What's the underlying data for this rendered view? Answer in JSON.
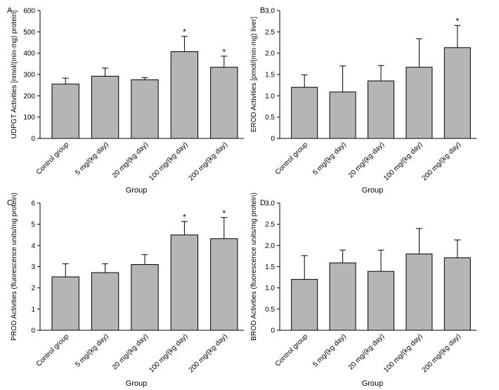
{
  "chart_data": [
    {
      "panel": "A",
      "type": "bar",
      "title": "",
      "xlabel": "Group",
      "ylabel": "UDPGT Activities [nmol/(min·mg) protein]",
      "categories": [
        "Control group",
        "5 mg/(kg·day)",
        "20 mg/(kg·day)",
        "100 mg/(kg·day)",
        "200  mg/(kg·day)"
      ],
      "values": [
        255,
        292,
        275,
        407,
        334
      ],
      "errors": [
        28,
        38,
        10,
        72,
        52
      ],
      "significant": [
        false,
        false,
        false,
        true,
        true
      ],
      "sig_mark": "*",
      "ylim": [
        0,
        600
      ],
      "yticks": [
        0,
        100,
        200,
        300,
        400,
        500,
        600
      ],
      "ytick_labels": [
        "0",
        "100",
        "200",
        "300",
        "400",
        "500",
        "600"
      ]
    },
    {
      "panel": "B",
      "type": "bar",
      "title": "",
      "xlabel": "Group",
      "ylabel": "EROD Activities [pmol/(min·mg) liver]",
      "categories": [
        "Control group",
        "5 mg/(kg·day)",
        "20 mg/(kg·day)",
        "100 mg/(kg·day)",
        "200  mg/(kg·day)"
      ],
      "values": [
        1.2,
        1.09,
        1.35,
        1.67,
        2.13
      ],
      "errors": [
        0.29,
        0.61,
        0.36,
        0.67,
        0.52
      ],
      "significant": [
        false,
        false,
        false,
        false,
        true
      ],
      "sig_mark": "*",
      "ylim": [
        0,
        3.0
      ],
      "yticks": [
        0,
        0.5,
        1.0,
        1.5,
        2.0,
        2.5,
        3.0
      ],
      "ytick_labels": [
        "0",
        "0.5",
        "1.0",
        "1.5",
        "2.0",
        "2.5",
        "3.0"
      ]
    },
    {
      "panel": "C",
      "type": "bar",
      "title": "",
      "xlabel": "Group",
      "ylabel": "PROD Activities  (fluorescence units/mg protein)",
      "categories": [
        "Control group",
        "5 mg/(kg·day)",
        "20 mg/(kg·day)",
        "100 mg/(kg·day)",
        "200  mg/(kg·day)"
      ],
      "values": [
        2.52,
        2.72,
        3.1,
        4.5,
        4.32
      ],
      "errors": [
        0.62,
        0.42,
        0.47,
        0.63,
        1.0
      ],
      "significant": [
        false,
        false,
        false,
        true,
        true
      ],
      "sig_mark": "*",
      "ylim": [
        0,
        6
      ],
      "yticks": [
        0,
        1,
        2,
        3,
        4,
        5,
        6
      ],
      "ytick_labels": [
        "0",
        "1",
        "2",
        "3",
        "4",
        "5",
        "6"
      ]
    },
    {
      "panel": "D",
      "type": "bar",
      "title": "",
      "xlabel": "Group",
      "ylabel": "BROD Activities (fluorescence units/mg protein)",
      "categories": [
        "Control group",
        "5 mg/(kg·day)",
        "20 mg/(kg·day)",
        "100 mg/(kg·day)",
        "200  mg/(kg·day)"
      ],
      "values": [
        1.2,
        1.59,
        1.39,
        1.8,
        1.71
      ],
      "errors": [
        0.56,
        0.3,
        0.5,
        0.6,
        0.42
      ],
      "significant": [
        false,
        false,
        false,
        false,
        false
      ],
      "sig_mark": "*",
      "ylim": [
        0,
        3.0
      ],
      "yticks": [
        0,
        0.5,
        1.0,
        1.5,
        2.0,
        2.5,
        3.0
      ],
      "ytick_labels": [
        "0",
        "0.5",
        "1.0",
        "1.5",
        "2.0",
        "2.5",
        "3.0"
      ]
    }
  ],
  "colors": {
    "bar_fill": "#b5b5b5",
    "stroke": "#000000",
    "background": "#ffffff"
  }
}
